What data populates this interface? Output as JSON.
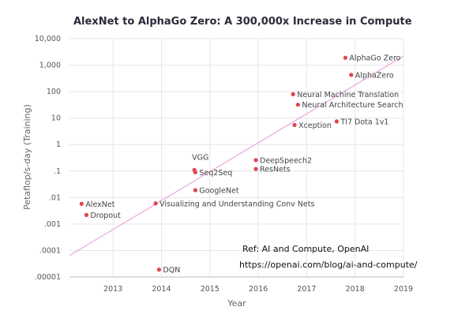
{
  "chart_data": {
    "type": "scatter",
    "title": "AlexNet to AlphaGo Zero: A 300,000x Increase in Compute",
    "xlabel": "Year",
    "ylabel": "Petaflop/s-day (Training)",
    "y_scale": "log",
    "xlim": [
      2012.1,
      2019
    ],
    "ylim": [
      1e-05,
      10000
    ],
    "x_ticks": [
      2013,
      2014,
      2015,
      2016,
      2017,
      2018,
      2019
    ],
    "x_tick_labels": [
      "2013",
      "2014",
      "2015",
      "2016",
      "2017",
      "2018",
      "2019"
    ],
    "y_ticks": [
      1e-05,
      0.0001,
      0.001,
      0.01,
      0.1,
      1,
      10,
      100,
      1000,
      10000
    ],
    "y_tick_labels": [
      ".00001",
      ".0001",
      ".001",
      ".01",
      ".1",
      "1",
      "10",
      "100",
      "1,000",
      "10,000"
    ],
    "grid": true,
    "point_color": "#e0454f",
    "trend_color": "#e8a8e0",
    "trend_line": {
      "x": [
        2012.1,
        2019
      ],
      "y": [
        6.5e-05,
        2200
      ]
    },
    "points": [
      {
        "label": "AlexNet",
        "x": 2012.35,
        "y": 0.0058
      },
      {
        "label": "Dropout",
        "x": 2012.45,
        "y": 0.0022
      },
      {
        "label": "DQN",
        "x": 2013.95,
        "y": 1.9e-05
      },
      {
        "label": "Visualizing and Understanding Conv Nets",
        "x": 2013.88,
        "y": 0.006
      },
      {
        "label": "GoogleNet",
        "x": 2014.7,
        "y": 0.019
      },
      {
        "label": "VGG",
        "x": 2014.68,
        "y": 0.11
      },
      {
        "label": "Seq2Seq",
        "x": 2014.7,
        "y": 0.09
      },
      {
        "label": "DeepSpeech2",
        "x": 2015.95,
        "y": 0.26
      },
      {
        "label": "ResNets",
        "x": 2015.95,
        "y": 0.12
      },
      {
        "label": "Neural Machine Translation",
        "x": 2016.72,
        "y": 80
      },
      {
        "label": "Neural Architecture Search",
        "x": 2016.82,
        "y": 32
      },
      {
        "label": "Xception",
        "x": 2016.75,
        "y": 5.5
      },
      {
        "label": "TI7 Dota 1v1",
        "x": 2017.62,
        "y": 7.5
      },
      {
        "label": "AlphaGo Zero",
        "x": 2017.8,
        "y": 1900
      },
      {
        "label": "AlphaZero",
        "x": 2017.92,
        "y": 430
      }
    ]
  },
  "reference": {
    "line1": "Ref: AI and Compute, OpenAI",
    "line2": "https://openai.com/blog/ai-and-compute/"
  }
}
